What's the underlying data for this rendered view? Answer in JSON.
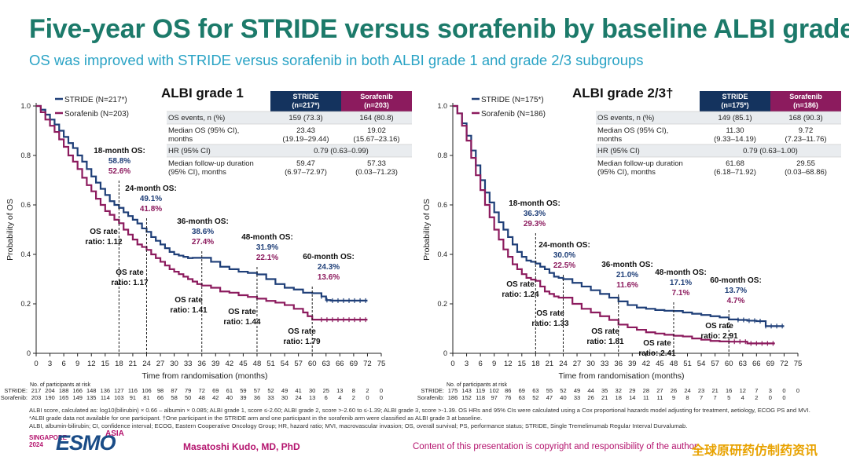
{
  "title": "Five-year OS for STRIDE versus sorafenib by baseline ALBI grade",
  "subtitle": "OS was improved with STRIDE versus sorafenib in both ALBI grade 1 and grade 2/3 subgroups",
  "colors": {
    "stride": "#1f3f78",
    "sorafenib": "#8c1b5e",
    "title": "#1c7a6a",
    "subtitle": "#2aa3c5",
    "table_header_stride": "#14335e",
    "table_header_sorafenib": "#8c1b5e"
  },
  "chart_data": [
    {
      "type": "line",
      "panel_title": "ALBI grade 1",
      "xlabel": "Time from randomisation (months)",
      "ylabel": "Probability of OS",
      "xlim": [
        0,
        75
      ],
      "ylim": [
        0,
        1
      ],
      "xticks": [
        "0",
        "3",
        "6",
        "9",
        "12",
        "15",
        "18",
        "21",
        "24",
        "27",
        "30",
        "33",
        "36",
        "39",
        "42",
        "45",
        "48",
        "51",
        "54",
        "57",
        "60",
        "63",
        "66",
        "69",
        "72",
        "75"
      ],
      "yticks": [
        "0",
        "0.2",
        "0.4",
        "0.6",
        "0.8",
        "1.0"
      ],
      "series": [
        {
          "name": "STRIDE (N=217*)",
          "x": [
            0,
            1,
            2,
            3,
            4,
            5,
            6,
            7,
            8,
            9,
            10,
            11,
            12,
            13,
            14,
            15,
            16,
            17,
            18,
            19,
            20,
            21,
            22,
            23,
            24,
            25,
            26,
            27,
            28,
            29,
            30,
            31,
            32,
            33,
            34,
            36,
            38,
            40,
            42,
            44,
            46,
            48,
            50,
            52,
            54,
            56,
            58,
            60,
            62,
            63,
            64,
            66,
            68,
            70,
            72
          ],
          "y": [
            1.0,
            0.985,
            0.965,
            0.945,
            0.925,
            0.9,
            0.875,
            0.85,
            0.83,
            0.8,
            0.775,
            0.745,
            0.715,
            0.69,
            0.665,
            0.64,
            0.615,
            0.6,
            0.588,
            0.57,
            0.555,
            0.54,
            0.525,
            0.505,
            0.491,
            0.47,
            0.455,
            0.44,
            0.425,
            0.41,
            0.4,
            0.395,
            0.39,
            0.385,
            0.386,
            0.386,
            0.37,
            0.35,
            0.34,
            0.33,
            0.325,
            0.319,
            0.3,
            0.28,
            0.265,
            0.258,
            0.245,
            0.243,
            0.23,
            0.215,
            0.213,
            0.213,
            0.213,
            0.213,
            0.213
          ]
        },
        {
          "name": "Sorafenib (N=203)",
          "x": [
            0,
            1,
            2,
            3,
            4,
            5,
            6,
            7,
            8,
            9,
            10,
            11,
            12,
            13,
            14,
            15,
            16,
            17,
            18,
            19,
            20,
            21,
            22,
            23,
            24,
            25,
            26,
            27,
            28,
            29,
            30,
            31,
            32,
            33,
            34,
            35,
            36,
            38,
            40,
            42,
            44,
            46,
            48,
            50,
            52,
            54,
            56,
            58,
            59,
            60,
            62,
            64,
            66,
            68,
            70,
            72
          ],
          "y": [
            1.0,
            0.975,
            0.945,
            0.92,
            0.895,
            0.865,
            0.835,
            0.8,
            0.775,
            0.745,
            0.71,
            0.68,
            0.655,
            0.625,
            0.6,
            0.575,
            0.56,
            0.54,
            0.526,
            0.5,
            0.48,
            0.46,
            0.44,
            0.43,
            0.418,
            0.4,
            0.385,
            0.37,
            0.355,
            0.34,
            0.33,
            0.32,
            0.31,
            0.3,
            0.29,
            0.28,
            0.274,
            0.265,
            0.25,
            0.245,
            0.235,
            0.228,
            0.221,
            0.212,
            0.205,
            0.195,
            0.18,
            0.165,
            0.15,
            0.136,
            0.136,
            0.136,
            0.136,
            0.136,
            0.136,
            0.136
          ]
        }
      ],
      "landmarks": [
        {
          "month": 18,
          "label": "18-month OS:",
          "stride": "58.8%",
          "sorafenib": "52.6%",
          "hr_label": "OS rate\nratio: 1.12"
        },
        {
          "month": 24,
          "label": "24-month OS:",
          "stride": "49.1%",
          "sorafenib": "41.8%",
          "hr_label": "OS rate\nratio: 1.17"
        },
        {
          "month": 36,
          "label": "36-month OS:",
          "stride": "38.6%",
          "sorafenib": "27.4%",
          "hr_label": "OS rate\nratio: 1.41"
        },
        {
          "month": 48,
          "label": "48-month OS:",
          "stride": "31.9%",
          "sorafenib": "22.1%",
          "hr_label": "OS rate\nratio: 1.44"
        },
        {
          "month": 60,
          "label": "60-month OS:",
          "stride": "24.3%",
          "sorafenib": "13.6%",
          "hr_label": "OS rate\nratio: 1.79"
        }
      ],
      "table": {
        "headers": [
          "",
          "STRIDE\n(n=217*)",
          "Sorafenib\n(n=203)"
        ],
        "rows": [
          [
            "OS events, n (%)",
            "159 (73.3)",
            "164 (80.8)"
          ],
          [
            "Median OS (95% CI),\nmonths",
            "23.43\n(19.19–29.44)",
            "19.02\n(15.67–23.16)"
          ],
          [
            "HR (95% CI)",
            "0.79 (0.63–0.99)",
            ""
          ],
          [
            "Median follow-up duration\n(95% CI), months",
            "59.47\n(6.97–72.97)",
            "57.33\n(0.03–71.23)"
          ]
        ]
      },
      "risk_header": "No. of participants at risk",
      "risk": [
        {
          "arm": "STRIDE",
          "values": [
            "217",
            "204",
            "188",
            "166",
            "148",
            "136",
            "127",
            "116",
            "106",
            "98",
            "87",
            "79",
            "72",
            "69",
            "61",
            "59",
            "57",
            "52",
            "49",
            "41",
            "30",
            "25",
            "13",
            "8",
            "2",
            "0"
          ]
        },
        {
          "arm": "Sorafenib",
          "values": [
            "203",
            "190",
            "165",
            "149",
            "135",
            "114",
            "103",
            "91",
            "81",
            "66",
            "58",
            "50",
            "48",
            "42",
            "40",
            "39",
            "36",
            "33",
            "30",
            "24",
            "13",
            "6",
            "4",
            "2",
            "0",
            "0"
          ]
        }
      ]
    },
    {
      "type": "line",
      "panel_title": "ALBI grade 2/3†",
      "xlabel": "Time from randomisation (months)",
      "ylabel": "Probability of OS",
      "xlim": [
        0,
        75
      ],
      "ylim": [
        0,
        1
      ],
      "xticks": [
        "0",
        "3",
        "6",
        "9",
        "12",
        "15",
        "18",
        "21",
        "24",
        "27",
        "30",
        "33",
        "36",
        "39",
        "42",
        "45",
        "48",
        "51",
        "54",
        "57",
        "60",
        "63",
        "66",
        "69",
        "72",
        "75"
      ],
      "yticks": [
        "0",
        "0.2",
        "0.4",
        "0.6",
        "0.8",
        "1.0"
      ],
      "series": [
        {
          "name": "STRIDE (N=175*)",
          "x": [
            0,
            1,
            2,
            3,
            4,
            5,
            6,
            7,
            8,
            9,
            10,
            11,
            12,
            13,
            14,
            15,
            16,
            17,
            18,
            19,
            20,
            21,
            22,
            23,
            24,
            26,
            28,
            30,
            32,
            34,
            36,
            38,
            40,
            42,
            44,
            46,
            48,
            50,
            52,
            54,
            56,
            58,
            60,
            62,
            64,
            66,
            68,
            70,
            72
          ],
          "y": [
            1.0,
            0.97,
            0.93,
            0.88,
            0.82,
            0.76,
            0.7,
            0.65,
            0.61,
            0.57,
            0.53,
            0.5,
            0.47,
            0.44,
            0.41,
            0.39,
            0.375,
            0.37,
            0.363,
            0.35,
            0.34,
            0.325,
            0.31,
            0.305,
            0.3,
            0.285,
            0.27,
            0.255,
            0.24,
            0.225,
            0.21,
            0.195,
            0.185,
            0.18,
            0.175,
            0.172,
            0.171,
            0.165,
            0.16,
            0.155,
            0.15,
            0.145,
            0.137,
            0.135,
            0.132,
            0.13,
            0.11,
            0.11,
            0.11
          ]
        },
        {
          "name": "Sorafenib (N=186)",
          "x": [
            0,
            1,
            2,
            3,
            4,
            5,
            6,
            7,
            8,
            9,
            10,
            11,
            12,
            13,
            14,
            15,
            16,
            17,
            18,
            19,
            20,
            21,
            22,
            23,
            24,
            26,
            28,
            30,
            32,
            34,
            36,
            38,
            40,
            42,
            44,
            46,
            48,
            50,
            52,
            54,
            56,
            58,
            60,
            62,
            64,
            66,
            68,
            70
          ],
          "y": [
            1.0,
            0.97,
            0.92,
            0.86,
            0.79,
            0.72,
            0.66,
            0.6,
            0.55,
            0.5,
            0.46,
            0.42,
            0.39,
            0.36,
            0.34,
            0.32,
            0.305,
            0.298,
            0.293,
            0.27,
            0.25,
            0.24,
            0.23,
            0.225,
            0.225,
            0.2,
            0.18,
            0.165,
            0.15,
            0.135,
            0.116,
            0.105,
            0.095,
            0.085,
            0.08,
            0.075,
            0.071,
            0.068,
            0.06,
            0.055,
            0.05,
            0.048,
            0.047,
            0.047,
            0.04,
            0.04,
            0.04,
            0.04
          ]
        }
      ],
      "landmarks": [
        {
          "month": 18,
          "label": "18-month OS:",
          "stride": "36.3%",
          "sorafenib": "29.3%",
          "hr_label": "OS rate\nratio: 1.24"
        },
        {
          "month": 24,
          "label": "24-month OS:",
          "stride": "30.0%",
          "sorafenib": "22.5%",
          "hr_label": "OS rate\nratio: 1.33"
        },
        {
          "month": 36,
          "label": "36-month OS:",
          "stride": "21.0%",
          "sorafenib": "11.6%",
          "hr_label": "OS rate\nratio: 1.81"
        },
        {
          "month": 48,
          "label": "48-month OS:",
          "stride": "17.1%",
          "sorafenib": "7.1%",
          "hr_label": "OS rate\nratio: 2.41"
        },
        {
          "month": 60,
          "label": "60-month OS:",
          "stride": "13.7%",
          "sorafenib": "4.7%",
          "hr_label": "OS rate\nratio: 2.91"
        }
      ],
      "table": {
        "headers": [
          "",
          "STRIDE\n(n=175*)",
          "Sorafenib\n(n=186)"
        ],
        "rows": [
          [
            "OS events, n (%)",
            "149 (85.1)",
            "168 (90.3)"
          ],
          [
            "Median OS (95% CI),\nmonths",
            "11.30\n(9.33–14.19)",
            "9.72\n(7.23–11.76)"
          ],
          [
            "HR (95% CI)",
            "0.79 (0.63–1.00)",
            ""
          ],
          [
            "Median follow-up duration\n(95% CI), months",
            "61.68\n(6.18–71.92)",
            "29.55\n(0.03–68.86)"
          ]
        ]
      },
      "risk_header": "No. of participants at risk",
      "risk": [
        {
          "arm": "STRIDE",
          "values": [
            "175",
            "143",
            "119",
            "102",
            "86",
            "69",
            "63",
            "55",
            "52",
            "49",
            "44",
            "35",
            "32",
            "29",
            "28",
            "27",
            "26",
            "24",
            "23",
            "21",
            "16",
            "12",
            "7",
            "3",
            "0",
            "0"
          ]
        },
        {
          "arm": "Sorafenib",
          "values": [
            "186",
            "152",
            "118",
            "97",
            "76",
            "63",
            "52",
            "47",
            "40",
            "33",
            "26",
            "21",
            "18",
            "14",
            "11",
            "11",
            "9",
            "8",
            "7",
            "7",
            "5",
            "4",
            "2",
            "0",
            "0",
            ""
          ]
        }
      ]
    }
  ],
  "footnotes": [
    "ALBI score, calculated as: log10(bilirubin) × 0.66 – albumin × 0.085; ALBI grade 1, score ≤-2.60; ALBI grade 2, score >-2.60 to ≤-1.39; ALBI grade 3, score >-1.39. OS HRs and 95% CIs were calculated using a Cox proportional hazards model adjusting for treatment, aetiology, ECOG PS and MVI.",
    "*ALBI grade data not available for one participant. †One participant in the STRIDE arm and one participant in the sorafenib arm were classified as ALBI grade 3 at baseline.",
    "ALBI, albumin-bilirubin; CI, confidence interval; ECOG, Eastern Cooperative Oncology Group; HR, hazard ratio; MVI, macrovascular invasion; OS, overall survival; PS, performance status; STRIDE, Single Tremelimumab Regular Interval Durvalumab."
  ],
  "logo": {
    "city": "SINGAPORE",
    "year": "2024",
    "brand": "ESMO",
    "region": "ASIA"
  },
  "author": "Masatoshi Kudo, MD, PhD",
  "copyright": "Content of this presentation is copyright and responsibility of the author.",
  "watermark": "全球原研药仿制药资讯"
}
